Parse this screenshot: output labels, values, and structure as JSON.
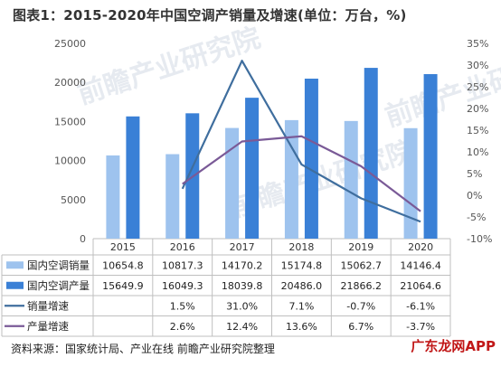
{
  "title": "图表1：2015-2020年中国空调产销量及增速(单位：万台，%)",
  "source_note": "资料来源：国家统计局、产业在线 前瞻产业研究院整理",
  "watermark": "前瞻产业研究院",
  "watermark_app": "广东龙网APP",
  "chart_data": {
    "type": "bar+line",
    "categories": [
      "2015",
      "2016",
      "2017",
      "2018",
      "2019",
      "2020"
    ],
    "bar_series": [
      {
        "name": "国内空调销量",
        "color": "#9ec3ee",
        "values": [
          10654.8,
          10817.3,
          14170.2,
          15174.8,
          15062.7,
          14146.4
        ]
      },
      {
        "name": "国内空调产量",
        "color": "#3a80d6",
        "values": [
          15649.9,
          16049.3,
          18039.8,
          20486.0,
          21866.2,
          21064.6
        ]
      }
    ],
    "line_series": [
      {
        "name": "销量增速",
        "color": "#3f6e9e",
        "values": [
          null,
          1.5,
          31.0,
          7.1,
          -0.7,
          -6.1
        ]
      },
      {
        "name": "产量增速",
        "color": "#7a5a97",
        "values": [
          null,
          2.6,
          12.4,
          13.6,
          6.7,
          -3.7
        ]
      }
    ],
    "y_left": {
      "min": 0,
      "max": 25000,
      "ticks": [
        0,
        5000,
        10000,
        15000,
        20000,
        25000
      ]
    },
    "y_right": {
      "min": -10,
      "max": 35,
      "ticks": [
        -10,
        -5,
        0,
        5,
        10,
        15,
        20,
        25,
        30,
        35
      ],
      "unit": "%"
    },
    "table": {
      "rows": [
        {
          "label": "国内空调销量",
          "cells": [
            "10654.8",
            "10817.3",
            "14170.2",
            "15174.8",
            "15062.7",
            "14146.4"
          ]
        },
        {
          "label": "国内空调产量",
          "cells": [
            "15649.9",
            "16049.3",
            "18039.8",
            "20486.0",
            "21866.2",
            "21064.6"
          ]
        },
        {
          "label": "销量增速",
          "cells": [
            "",
            "1.5%",
            "31.0%",
            "7.1%",
            "-0.7%",
            "-6.1%"
          ]
        },
        {
          "label": "产量增速",
          "cells": [
            "",
            "2.6%",
            "12.4%",
            "13.6%",
            "6.7%",
            "-3.7%"
          ]
        }
      ]
    }
  }
}
